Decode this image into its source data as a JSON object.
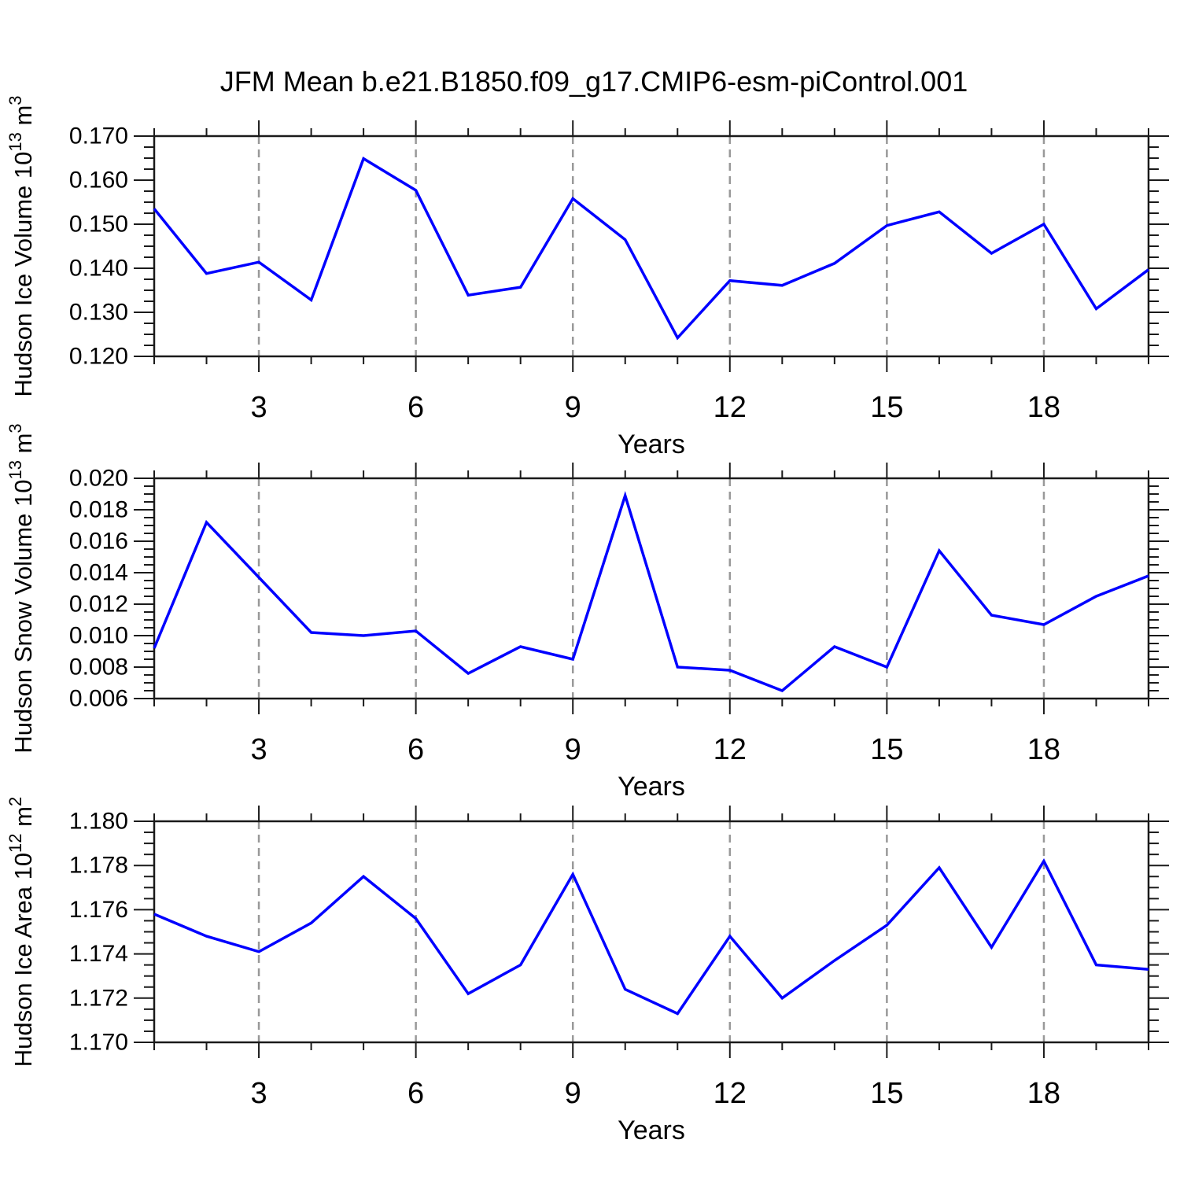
{
  "title": "JFM Mean b.e21.B1850.f09_g17.CMIP6-esm-piControl.001",
  "colors": {
    "line": "#0000ff",
    "frame": "#1a1a1a",
    "gridline": "#999999",
    "background": "#ffffff",
    "text": "#000000"
  },
  "chart_data": [
    {
      "type": "line",
      "series_name": "Hudson Ice Volume",
      "ylabel_parts": [
        {
          "t": "Hudson Ice Volume 10"
        },
        {
          "t": "13",
          "sup": true
        },
        {
          "t": " m"
        },
        {
          "t": "3",
          "sup": true
        }
      ],
      "x": [
        1,
        2,
        3,
        4,
        5,
        6,
        7,
        8,
        9,
        10,
        11,
        12,
        13,
        14,
        15,
        16,
        17,
        18,
        19,
        20
      ],
      "values": [
        0.1535,
        0.1388,
        0.1414,
        0.1328,
        0.1649,
        0.1577,
        0.1339,
        0.1357,
        0.1558,
        0.1465,
        0.1242,
        0.1372,
        0.1361,
        0.1411,
        0.1497,
        0.1528,
        0.1434,
        0.15,
        0.1308,
        0.1397
      ],
      "xlim": [
        1,
        20
      ],
      "ylim": [
        0.12,
        0.17
      ],
      "ytick_values": [
        0.12,
        0.13,
        0.14,
        0.15,
        0.16,
        0.17
      ],
      "ytick_labels": [
        "0.120",
        "0.130",
        "0.140",
        "0.150",
        "0.160",
        "0.170"
      ],
      "y_minor_step": 0.0025,
      "xtick_values": [
        3,
        6,
        9,
        12,
        15,
        18
      ],
      "xtick_labels": [
        "3",
        "6",
        "9",
        "12",
        "15",
        "18"
      ],
      "x_minor_step": 1,
      "xlabel": "Years",
      "grid": "vertical-dashed-at-major-ticks",
      "legend": "none"
    },
    {
      "type": "line",
      "series_name": "Hudson Snow Volume",
      "ylabel_parts": [
        {
          "t": "Hudson Snow Volume 10"
        },
        {
          "t": "13",
          "sup": true
        },
        {
          "t": " m"
        },
        {
          "t": "3",
          "sup": true
        }
      ],
      "x": [
        1,
        2,
        3,
        4,
        5,
        6,
        7,
        8,
        9,
        10,
        11,
        12,
        13,
        14,
        15,
        16,
        17,
        18,
        19,
        20
      ],
      "values": [
        0.0092,
        0.0172,
        0.0137,
        0.0102,
        0.01,
        0.0103,
        0.0076,
        0.0093,
        0.0085,
        0.0189,
        0.008,
        0.0078,
        0.0065,
        0.0093,
        0.008,
        0.0154,
        0.0113,
        0.0107,
        0.0125,
        0.0138
      ],
      "xlim": [
        1,
        20
      ],
      "ylim": [
        0.006,
        0.02
      ],
      "ytick_values": [
        0.006,
        0.008,
        0.01,
        0.012,
        0.014,
        0.016,
        0.018,
        0.02
      ],
      "ytick_labels": [
        "0.006",
        "0.008",
        "0.010",
        "0.012",
        "0.014",
        "0.016",
        "0.018",
        "0.020"
      ],
      "y_minor_step": 0.0005,
      "xtick_values": [
        3,
        6,
        9,
        12,
        15,
        18
      ],
      "xtick_labels": [
        "3",
        "6",
        "9",
        "12",
        "15",
        "18"
      ],
      "x_minor_step": 1,
      "xlabel": "Years",
      "grid": "vertical-dashed-at-major-ticks",
      "legend": "none"
    },
    {
      "type": "line",
      "series_name": "Hudson Ice Area",
      "ylabel_parts": [
        {
          "t": "Hudson Ice Area 10"
        },
        {
          "t": "12",
          "sup": true
        },
        {
          "t": " m"
        },
        {
          "t": "2",
          "sup": true
        }
      ],
      "x": [
        1,
        2,
        3,
        4,
        5,
        6,
        7,
        8,
        9,
        10,
        11,
        12,
        13,
        14,
        15,
        16,
        17,
        18,
        19,
        20
      ],
      "values": [
        1.1758,
        1.1748,
        1.1741,
        1.1754,
        1.1775,
        1.1756,
        1.1722,
        1.1735,
        1.1776,
        1.1724,
        1.1713,
        1.1748,
        1.172,
        1.1737,
        1.1753,
        1.1779,
        1.1743,
        1.1782,
        1.1735,
        1.1733
      ],
      "xlim": [
        1,
        20
      ],
      "ylim": [
        1.17,
        1.18
      ],
      "ytick_values": [
        1.17,
        1.172,
        1.174,
        1.176,
        1.178,
        1.18
      ],
      "ytick_labels": [
        "1.170",
        "1.172",
        "1.174",
        "1.176",
        "1.178",
        "1.180"
      ],
      "y_minor_step": 0.0005,
      "xtick_values": [
        3,
        6,
        9,
        12,
        15,
        18
      ],
      "xtick_labels": [
        "3",
        "6",
        "9",
        "12",
        "15",
        "18"
      ],
      "x_minor_step": 1,
      "xlabel": "Years",
      "grid": "vertical-dashed-at-major-ticks",
      "legend": "none"
    }
  ]
}
